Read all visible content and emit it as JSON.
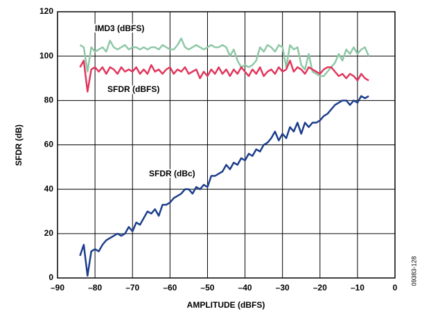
{
  "chart_data": {
    "type": "line",
    "xlabel": "AMPLITUDE (dBFS)",
    "ylabel": "SFDR (dB)",
    "annotations": [
      "09383-128"
    ],
    "x": [
      -84,
      -83,
      -82,
      -81,
      -80,
      -79,
      -78,
      -77,
      -76,
      -75,
      -74,
      -73,
      -72,
      -71,
      -70,
      -69,
      -68,
      -67,
      -66,
      -65,
      -64,
      -63,
      -62,
      -61,
      -60,
      -59,
      -58,
      -57,
      -56,
      -55,
      -54,
      -53,
      -52,
      -51,
      -50,
      -49,
      -48,
      -47,
      -46,
      -45,
      -44,
      -43,
      -42,
      -41,
      -40,
      -39,
      -38,
      -37,
      -36,
      -35,
      -34,
      -33,
      -32,
      -31,
      -30,
      -29,
      -28,
      -27,
      -26,
      -25,
      -24,
      -23,
      -22,
      -21,
      -20,
      -19,
      -18,
      -17,
      -16,
      -15,
      -14,
      -13,
      -12,
      -11,
      -10,
      -9,
      -8,
      -7
    ],
    "series": [
      {
        "name": "IMD3 (dBFS)",
        "color": "#8ec8a6",
        "values": [
          105,
          104,
          93,
          104,
          102,
          103,
          104,
          102,
          107,
          104,
          103,
          104,
          105,
          103,
          104,
          104,
          103,
          104,
          103,
          104,
          104,
          103,
          105,
          104,
          103,
          103,
          105,
          108,
          104,
          103,
          104,
          105,
          104,
          103,
          104,
          105,
          104,
          104,
          105,
          104,
          100,
          103,
          98,
          95,
          96,
          95,
          96,
          98,
          104,
          102,
          105,
          104,
          102,
          105,
          104,
          95,
          105,
          103,
          104,
          96,
          94,
          101,
          93,
          92,
          91,
          91,
          93,
          95,
          97,
          101,
          98,
          103,
          101,
          104,
          101,
          103,
          104,
          100
        ]
      },
      {
        "name": "SFDR (dBFS)",
        "color": "#e0365c",
        "values": [
          95,
          98,
          84,
          94,
          95,
          93,
          95,
          92,
          95,
          94,
          92,
          95,
          93,
          94,
          93,
          95,
          92,
          94,
          92,
          96,
          93,
          94,
          92,
          94,
          95,
          92,
          94,
          93,
          95,
          92,
          93,
          94,
          90,
          93,
          91,
          94,
          92,
          95,
          92,
          94,
          91,
          94,
          92,
          95,
          93,
          91,
          94,
          92,
          95,
          91,
          93,
          94,
          92,
          95,
          93,
          94,
          98,
          93,
          95,
          94,
          92,
          95,
          94,
          93,
          92,
          94,
          95,
          95,
          93,
          91,
          92,
          90,
          92,
          91,
          89,
          92,
          90,
          89
        ]
      },
      {
        "name": "SFDR (dBc)",
        "color": "#1c3d8c",
        "values": [
          10,
          15,
          1,
          12,
          13,
          12,
          15,
          17,
          18,
          19,
          20,
          19,
          20,
          23,
          21,
          25,
          24,
          27,
          30,
          29,
          31,
          28,
          33,
          33,
          34,
          36,
          37,
          38,
          40,
          40,
          38,
          41,
          40,
          42,
          41,
          46,
          46,
          47,
          48,
          51,
          49,
          52,
          51,
          54,
          53,
          56,
          55,
          58,
          57,
          60,
          61,
          63,
          66,
          62,
          65,
          63,
          68,
          66,
          70,
          65,
          70,
          68,
          70,
          70,
          71,
          73,
          74,
          76,
          78,
          79,
          80,
          80,
          78,
          80,
          79,
          82,
          81,
          82
        ]
      }
    ],
    "xlim": [
      -90,
      0
    ],
    "xticks": [
      {
        "value": -90,
        "label": "–90"
      },
      {
        "value": -80,
        "label": "–80"
      },
      {
        "value": -70,
        "label": "–70"
      },
      {
        "value": -60,
        "label": "–60"
      },
      {
        "value": -50,
        "label": "–50"
      },
      {
        "value": -40,
        "label": "–40"
      },
      {
        "value": -30,
        "label": "–30"
      },
      {
        "value": -20,
        "label": "–20"
      },
      {
        "value": -10,
        "label": "–10"
      },
      0
    ],
    "ylim": [
      0,
      120
    ],
    "yticks": [
      0,
      20,
      40,
      60,
      80,
      100,
      120
    ],
    "grid": true
  }
}
